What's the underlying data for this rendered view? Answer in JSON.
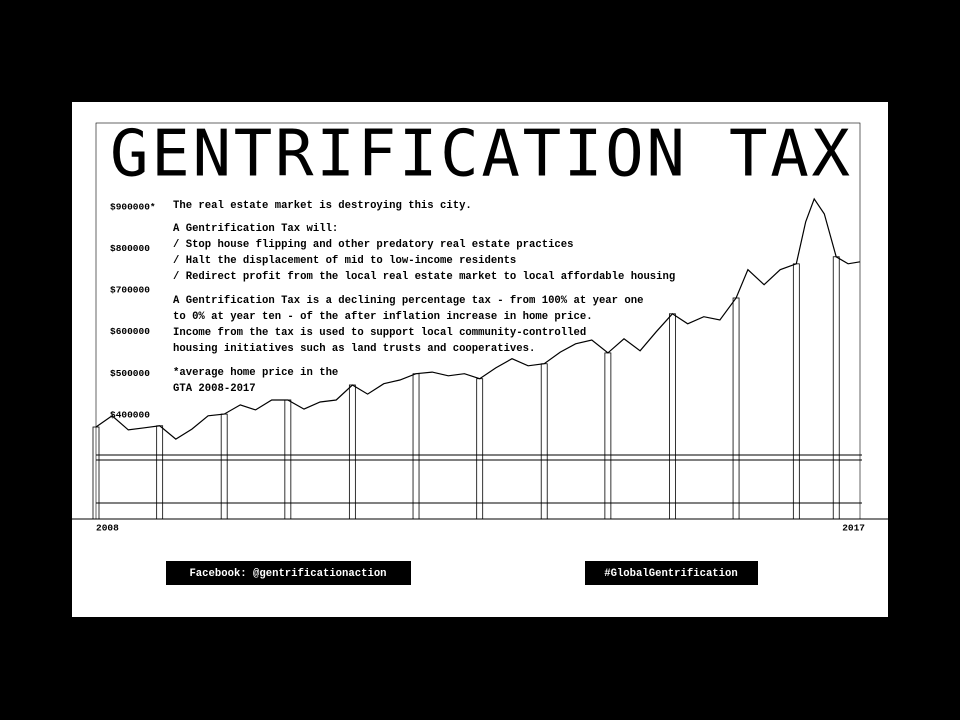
{
  "chart_data": {
    "type": "line",
    "title": "GENTRIFICATION TAX",
    "x": [
      2008.0,
      2008.19,
      2008.38,
      2008.57,
      2008.75,
      2008.94,
      2009.13,
      2009.32,
      2009.51,
      2009.7,
      2009.88,
      2010.07,
      2010.26,
      2010.45,
      2010.64,
      2010.83,
      2011.02,
      2011.2,
      2011.39,
      2011.58,
      2011.77,
      2011.96,
      2012.15,
      2012.34,
      2012.52,
      2012.71,
      2012.9,
      2013.09,
      2013.28,
      2013.47,
      2013.65,
      2013.84,
      2014.03,
      2014.22,
      2014.41,
      2014.6,
      2014.79,
      2014.97,
      2015.16,
      2015.35,
      2015.54,
      2015.68,
      2015.87,
      2016.06,
      2016.25,
      2016.36,
      2016.46,
      2016.58,
      2016.72,
      2016.86,
      2017.0
    ],
    "values": [
      371000,
      398000,
      364000,
      369000,
      374000,
      342000,
      366000,
      398000,
      402000,
      424000,
      412000,
      436000,
      436000,
      414000,
      431000,
      436000,
      472000,
      450000,
      475000,
      484000,
      499000,
      503000,
      494000,
      499000,
      487000,
      513000,
      535000,
      518000,
      523000,
      551000,
      571000,
      580000,
      549000,
      583000,
      554000,
      600000,
      643000,
      619000,
      636000,
      628000,
      681000,
      749000,
      713000,
      749000,
      763000,
      864000,
      919000,
      883000,
      780000,
      763000,
      768000
    ],
    "color": "#000000",
    "xlim": [
      2008,
      2017
    ],
    "xticks": [
      2008,
      2017
    ],
    "ylim": [
      150000,
      950000
    ],
    "yticks": [
      {
        "value": 400000,
        "label": "$400000"
      },
      {
        "value": 500000,
        "label": "$500000"
      },
      {
        "value": 600000,
        "label": "$600000"
      },
      {
        "value": 700000,
        "label": "$700000"
      },
      {
        "value": 800000,
        "label": "$800000"
      },
      {
        "value": 900000,
        "label": "$900000*"
      }
    ]
  },
  "text": {
    "intro": "The real estate market is destroying this city.",
    "list_heading": "A Gentrification Tax will:",
    "list": [
      "/ Stop house flipping and other predatory real estate practices",
      "/ Halt the displacement of mid to low-income residents",
      "/ Redirect profit from the local real estate market to local affordable housing"
    ],
    "paragraph": [
      "A Gentrification Tax is a declining percentage tax - from 100% at year one",
      "to 0% at year ten - of the after inflation increase in home price.",
      "Income from the tax is used to support local community-controlled",
      "housing initiatives such as land trusts and cooperatives."
    ],
    "footnote": [
      "*average home price in the",
      "GTA 2008-2017"
    ]
  },
  "footer": {
    "facebook": "Facebook: @gentrificationaction",
    "hashtag": "#GlobalGentrification"
  }
}
